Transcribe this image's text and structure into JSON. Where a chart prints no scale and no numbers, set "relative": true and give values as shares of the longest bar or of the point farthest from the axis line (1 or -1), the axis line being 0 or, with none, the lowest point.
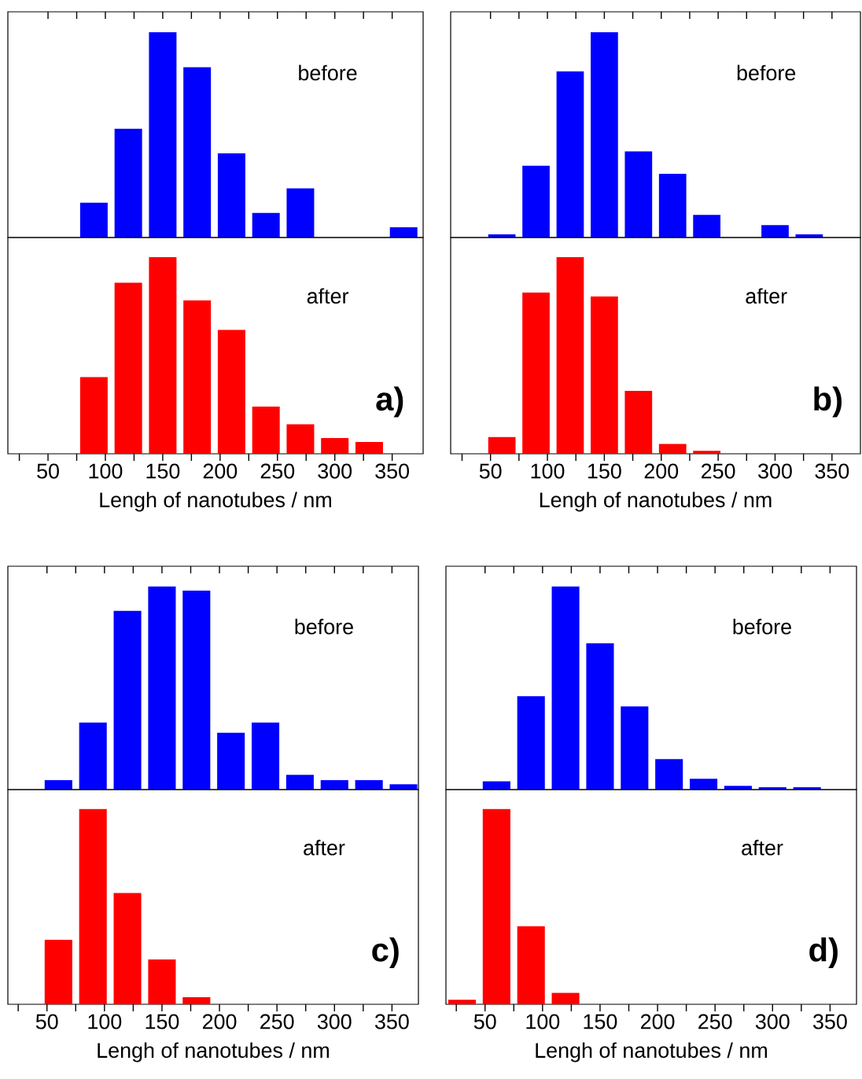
{
  "chart_data": [
    {
      "type": "bar",
      "relative": true,
      "color": "#0000ff",
      "x": [
        90,
        120,
        150,
        180,
        210,
        240,
        270,
        360
      ],
      "values": [
        0.17,
        0.53,
        1,
        0.83,
        0.41,
        0.12,
        0.24,
        0.05
      ],
      "xlim": [
        15,
        377
      ],
      "xticks": [
        {
          "value": 50,
          "label": null
        },
        {
          "value": 100,
          "label": null
        },
        {
          "value": 150,
          "label": null
        },
        {
          "value": 200,
          "label": null
        },
        {
          "value": 250,
          "label": null
        },
        {
          "value": 300,
          "label": null
        },
        {
          "value": 350,
          "label": null
        }
      ],
      "tick_labels": false,
      "annotations": [
        "before"
      ]
    },
    {
      "type": "bar",
      "relative": true,
      "color": "#ff0000",
      "x": [
        90,
        120,
        150,
        180,
        210,
        240,
        270,
        300,
        330
      ],
      "values": [
        0.39,
        0.87,
        1,
        0.78,
        0.63,
        0.24,
        0.15,
        0.08,
        0.06
      ],
      "xlim": [
        15,
        377
      ],
      "xticks": [
        {
          "value": 25,
          "label": null
        },
        50,
        {
          "value": 75,
          "label": null
        },
        100,
        {
          "value": 125,
          "label": null
        },
        150,
        {
          "value": 175,
          "label": null
        },
        200,
        {
          "value": 225,
          "label": null
        },
        250,
        {
          "value": 275,
          "label": null
        },
        300,
        {
          "value": 325,
          "label": null
        },
        350
      ],
      "tick_labels": "x",
      "xlabel": "Lengh of nanotubes / nm",
      "annotations": [
        "after",
        "a)"
      ]
    },
    {
      "type": "bar",
      "relative": true,
      "color": "#0000ff",
      "x": [
        60,
        90,
        120,
        150,
        180,
        210,
        240,
        300,
        330
      ],
      "values": [
        0.015,
        0.35,
        0.81,
        1,
        0.42,
        0.31,
        0.11,
        0.06,
        0.015
      ],
      "xlim": [
        15,
        375
      ],
      "xticks": [
        {
          "value": 50,
          "label": null
        },
        {
          "value": 100,
          "label": null
        },
        {
          "value": 150,
          "label": null
        },
        {
          "value": 200,
          "label": null
        },
        {
          "value": 250,
          "label": null
        },
        {
          "value": 300,
          "label": null
        },
        {
          "value": 350,
          "label": null
        }
      ],
      "tick_labels": false,
      "annotations": [
        "before"
      ]
    },
    {
      "type": "bar",
      "relative": true,
      "color": "#ff0000",
      "x": [
        60,
        90,
        120,
        150,
        180,
        210,
        240
      ],
      "values": [
        0.085,
        0.82,
        1,
        0.8,
        0.32,
        0.05,
        0.015
      ],
      "xlim": [
        15,
        375
      ],
      "xticks": [
        {
          "value": 25,
          "label": null
        },
        50,
        {
          "value": 75,
          "label": null
        },
        100,
        {
          "value": 125,
          "label": null
        },
        150,
        {
          "value": 175,
          "label": null
        },
        200,
        {
          "value": 225,
          "label": null
        },
        250,
        {
          "value": 275,
          "label": null
        },
        300,
        {
          "value": 325,
          "label": null
        },
        350
      ],
      "tick_labels": "x",
      "xlabel": "Lengh of nanotubes / nm",
      "annotations": [
        "after",
        "b)"
      ]
    },
    {
      "type": "bar",
      "relative": true,
      "color": "#0000ff",
      "x": [
        60,
        90,
        120,
        150,
        180,
        210,
        240,
        270,
        300,
        330,
        360
      ],
      "values": [
        0.047,
        0.33,
        0.88,
        1,
        0.98,
        0.28,
        0.33,
        0.073,
        0.047,
        0.047,
        0.026
      ],
      "xlim": [
        16,
        373
      ],
      "xticks": [
        {
          "value": 50,
          "label": null
        },
        {
          "value": 100,
          "label": null
        },
        {
          "value": 150,
          "label": null
        },
        {
          "value": 200,
          "label": null
        },
        {
          "value": 250,
          "label": null
        },
        {
          "value": 300,
          "label": null
        },
        {
          "value": 350,
          "label": null
        }
      ],
      "tick_labels": false,
      "annotations": [
        "before"
      ]
    },
    {
      "type": "bar",
      "relative": true,
      "color": "#ff0000",
      "x": [
        60,
        90,
        120,
        150,
        180
      ],
      "values": [
        0.33,
        1,
        0.57,
        0.23,
        0.036
      ],
      "xlim": [
        16,
        373
      ],
      "xticks": [
        {
          "value": 25,
          "label": null
        },
        50,
        {
          "value": 75,
          "label": null
        },
        100,
        {
          "value": 125,
          "label": null
        },
        150,
        {
          "value": 175,
          "label": null
        },
        200,
        {
          "value": 225,
          "label": null
        },
        250,
        {
          "value": 275,
          "label": null
        },
        300,
        {
          "value": 325,
          "label": null
        },
        350
      ],
      "tick_labels": "x",
      "xlabel": "Lengh of nanotubes / nm",
      "annotations": [
        "after",
        "c)"
      ]
    },
    {
      "type": "bar",
      "relative": true,
      "color": "#0000ff",
      "x": [
        60,
        90,
        120,
        150,
        180,
        210,
        240,
        270,
        300,
        330
      ],
      "values": [
        0.041,
        0.46,
        1,
        0.72,
        0.41,
        0.15,
        0.053,
        0.018,
        0.012,
        0.012
      ],
      "xlim": [
        16,
        373
      ],
      "xticks": [
        {
          "value": 50,
          "label": null
        },
        {
          "value": 100,
          "label": null
        },
        {
          "value": 150,
          "label": null
        },
        {
          "value": 200,
          "label": null
        },
        {
          "value": 250,
          "label": null
        },
        {
          "value": 300,
          "label": null
        },
        {
          "value": 350,
          "label": null
        }
      ],
      "tick_labels": false,
      "annotations": [
        "before"
      ]
    },
    {
      "type": "bar",
      "relative": true,
      "color": "#ff0000",
      "x": [
        30,
        60,
        90,
        120
      ],
      "values": [
        0.023,
        1,
        0.4,
        0.058
      ],
      "xlim": [
        16,
        373
      ],
      "xticks": [
        {
          "value": 25,
          "label": null
        },
        50,
        {
          "value": 75,
          "label": null
        },
        100,
        {
          "value": 125,
          "label": null
        },
        150,
        {
          "value": 175,
          "label": null
        },
        200,
        {
          "value": 225,
          "label": null
        },
        250,
        {
          "value": 275,
          "label": null
        },
        300,
        {
          "value": 325,
          "label": null
        },
        350
      ],
      "tick_labels": "x",
      "xlabel": "Lengh of nanotubes / nm",
      "annotations": [
        "after",
        "d)"
      ]
    }
  ]
}
